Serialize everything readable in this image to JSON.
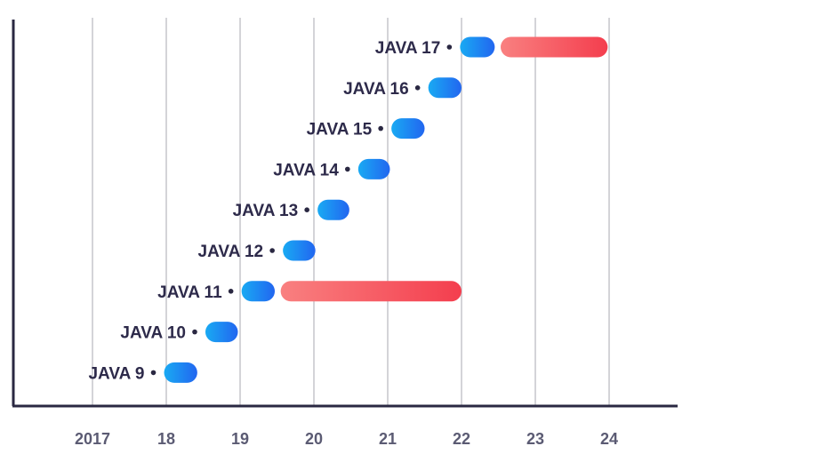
{
  "chart_data": {
    "type": "gantt",
    "title": "",
    "xlabel": "",
    "ylabel": "",
    "x_ticks": [
      "2017",
      "18",
      "19",
      "20",
      "21",
      "22",
      "23",
      "24"
    ],
    "x_tick_values": [
      2017,
      2018,
      2019,
      2020,
      2021,
      2022,
      2023,
      2024
    ],
    "xlim": [
      2016.0,
      2025.0
    ],
    "rows": [
      {
        "label": "JAVA 9",
        "release_start": 2017.97,
        "release_end": 2018.42,
        "lts_start": null,
        "lts_end": null
      },
      {
        "label": "JAVA 10",
        "release_start": 2018.53,
        "release_end": 2018.97,
        "lts_start": null,
        "lts_end": null
      },
      {
        "label": "JAVA 11",
        "release_start": 2019.02,
        "release_end": 2019.47,
        "lts_start": 2019.55,
        "lts_end": 2022.0
      },
      {
        "label": "JAVA 12",
        "release_start": 2019.58,
        "release_end": 2020.02,
        "lts_start": null,
        "lts_end": null
      },
      {
        "label": "JAVA 13",
        "release_start": 2020.05,
        "release_end": 2020.48,
        "lts_start": null,
        "lts_end": null
      },
      {
        "label": "JAVA 14",
        "release_start": 2020.6,
        "release_end": 2021.03,
        "lts_start": null,
        "lts_end": null
      },
      {
        "label": "JAVA 15",
        "release_start": 2021.05,
        "release_end": 2021.5,
        "lts_start": null,
        "lts_end": null
      },
      {
        "label": "JAVA 16",
        "release_start": 2021.55,
        "release_end": 2022.0,
        "lts_start": null,
        "lts_end": null
      },
      {
        "label": "JAVA 17",
        "release_start": 2021.98,
        "release_end": 2022.45,
        "lts_start": 2022.53,
        "lts_end": 2023.98
      }
    ],
    "colors": {
      "release_light": "#19aaf3",
      "release_dark": "#2266f0",
      "lts_light": "#f98080",
      "lts_dark": "#f43e4e",
      "axis": "#2a2842",
      "grid": "#d4d4d8"
    }
  }
}
